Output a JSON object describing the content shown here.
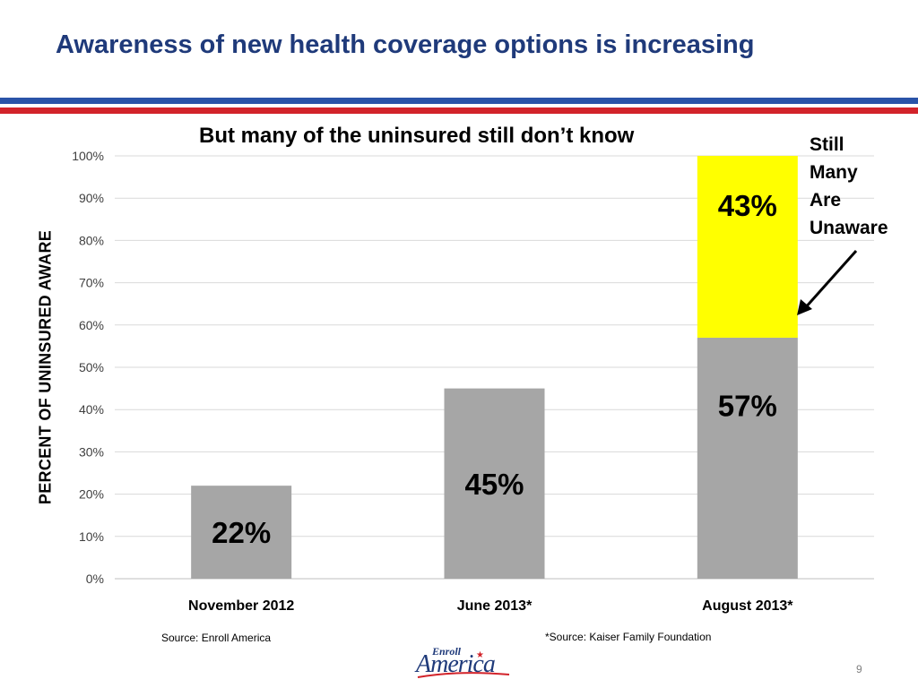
{
  "slide": {
    "title": "Awareness of new health coverage options is increasing",
    "page_number": "9",
    "logo": {
      "small_text": "Enroll",
      "big_text": "America"
    }
  },
  "colors": {
    "title_blue": "#1f3a7a",
    "band_blue": "#2a53a8",
    "band_red": "#d2232a",
    "bar_gray": "#a6a6a6",
    "bar_yellow": "#ffff00"
  },
  "annotation": {
    "lines": [
      "Still",
      "Many",
      "Are",
      "Unaware"
    ]
  },
  "sources": {
    "left": "Source: Enroll America",
    "right": "*Source: Kaiser Family Foundation"
  },
  "chart_data": {
    "type": "bar",
    "stacked": true,
    "title": "But many of the uninsured still don’t know",
    "xlabel": "",
    "ylabel": "PERCENT OF UNINSURED AWARE",
    "categories": [
      "November 2012",
      "June 2013*",
      "August 2013*"
    ],
    "ylim": [
      0,
      100
    ],
    "yticks": [
      "0%",
      "10%",
      "20%",
      "30%",
      "40%",
      "50%",
      "60%",
      "70%",
      "80%",
      "90%",
      "100%"
    ],
    "grid": true,
    "series": [
      {
        "values": [
          22,
          45,
          57
        ],
        "labels": [
          "22%",
          "45%",
          "57%"
        ],
        "color": "#a6a6a6"
      },
      {
        "values": [
          null,
          null,
          43
        ],
        "labels": [
          "",
          "",
          "43%"
        ],
        "color": "#ffff00"
      }
    ]
  }
}
